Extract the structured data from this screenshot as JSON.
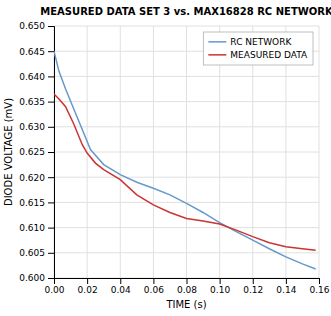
{
  "chart_data": {
    "type": "line",
    "title": "MEASURED DATA SET 3 vs. MAX16828 RC NETWORK",
    "xlabel": "TIME (s)",
    "ylabel": "DIODE VOLTAGE (mV)",
    "xlim": [
      0.0,
      0.16
    ],
    "ylim": [
      0.6,
      0.65
    ],
    "xticks": [
      {
        "value": 0.0,
        "label": "0.00"
      },
      0.02,
      0.04,
      0.06,
      0.08,
      {
        "value": 0.1,
        "label": "0.10"
      },
      0.12,
      0.14,
      0.16
    ],
    "yticks": [
      {
        "value": 0.6,
        "label": "0.600"
      },
      0.605,
      {
        "value": 0.61,
        "label": "0.610"
      },
      0.615,
      {
        "value": 0.62,
        "label": "0.620"
      },
      0.625,
      {
        "value": 0.63,
        "label": "0.630"
      },
      0.635,
      {
        "value": 0.64,
        "label": "0.640"
      },
      0.645,
      {
        "value": 0.65,
        "label": "0.650"
      }
    ],
    "grid": true,
    "legend": "upper right",
    "series": [
      {
        "name": "RC NETWORK",
        "color": "#6699cc",
        "x": [
          0.0,
          0.003,
          0.007,
          0.012,
          0.017,
          0.022,
          0.03,
          0.04,
          0.05,
          0.06,
          0.07,
          0.08,
          0.09,
          0.1,
          0.11,
          0.12,
          0.13,
          0.14,
          0.15,
          0.158
        ],
        "values": [
          0.645,
          0.641,
          0.6375,
          0.6335,
          0.6295,
          0.6255,
          0.6225,
          0.6205,
          0.619,
          0.6178,
          0.6165,
          0.6148,
          0.613,
          0.611,
          0.6092,
          0.6075,
          0.6058,
          0.6042,
          0.6028,
          0.6018
        ]
      },
      {
        "name": "MEASURED DATA",
        "color": "#cc3333",
        "x": [
          0.0,
          0.003,
          0.007,
          0.012,
          0.017,
          0.02,
          0.025,
          0.03,
          0.04,
          0.05,
          0.06,
          0.07,
          0.08,
          0.09,
          0.1,
          0.11,
          0.12,
          0.13,
          0.14,
          0.15,
          0.158
        ],
        "values": [
          0.6365,
          0.6355,
          0.634,
          0.6305,
          0.6265,
          0.6248,
          0.6228,
          0.6215,
          0.6195,
          0.6165,
          0.6145,
          0.613,
          0.6118,
          0.6113,
          0.6107,
          0.6095,
          0.6082,
          0.607,
          0.6062,
          0.6058,
          0.6055
        ]
      }
    ]
  }
}
